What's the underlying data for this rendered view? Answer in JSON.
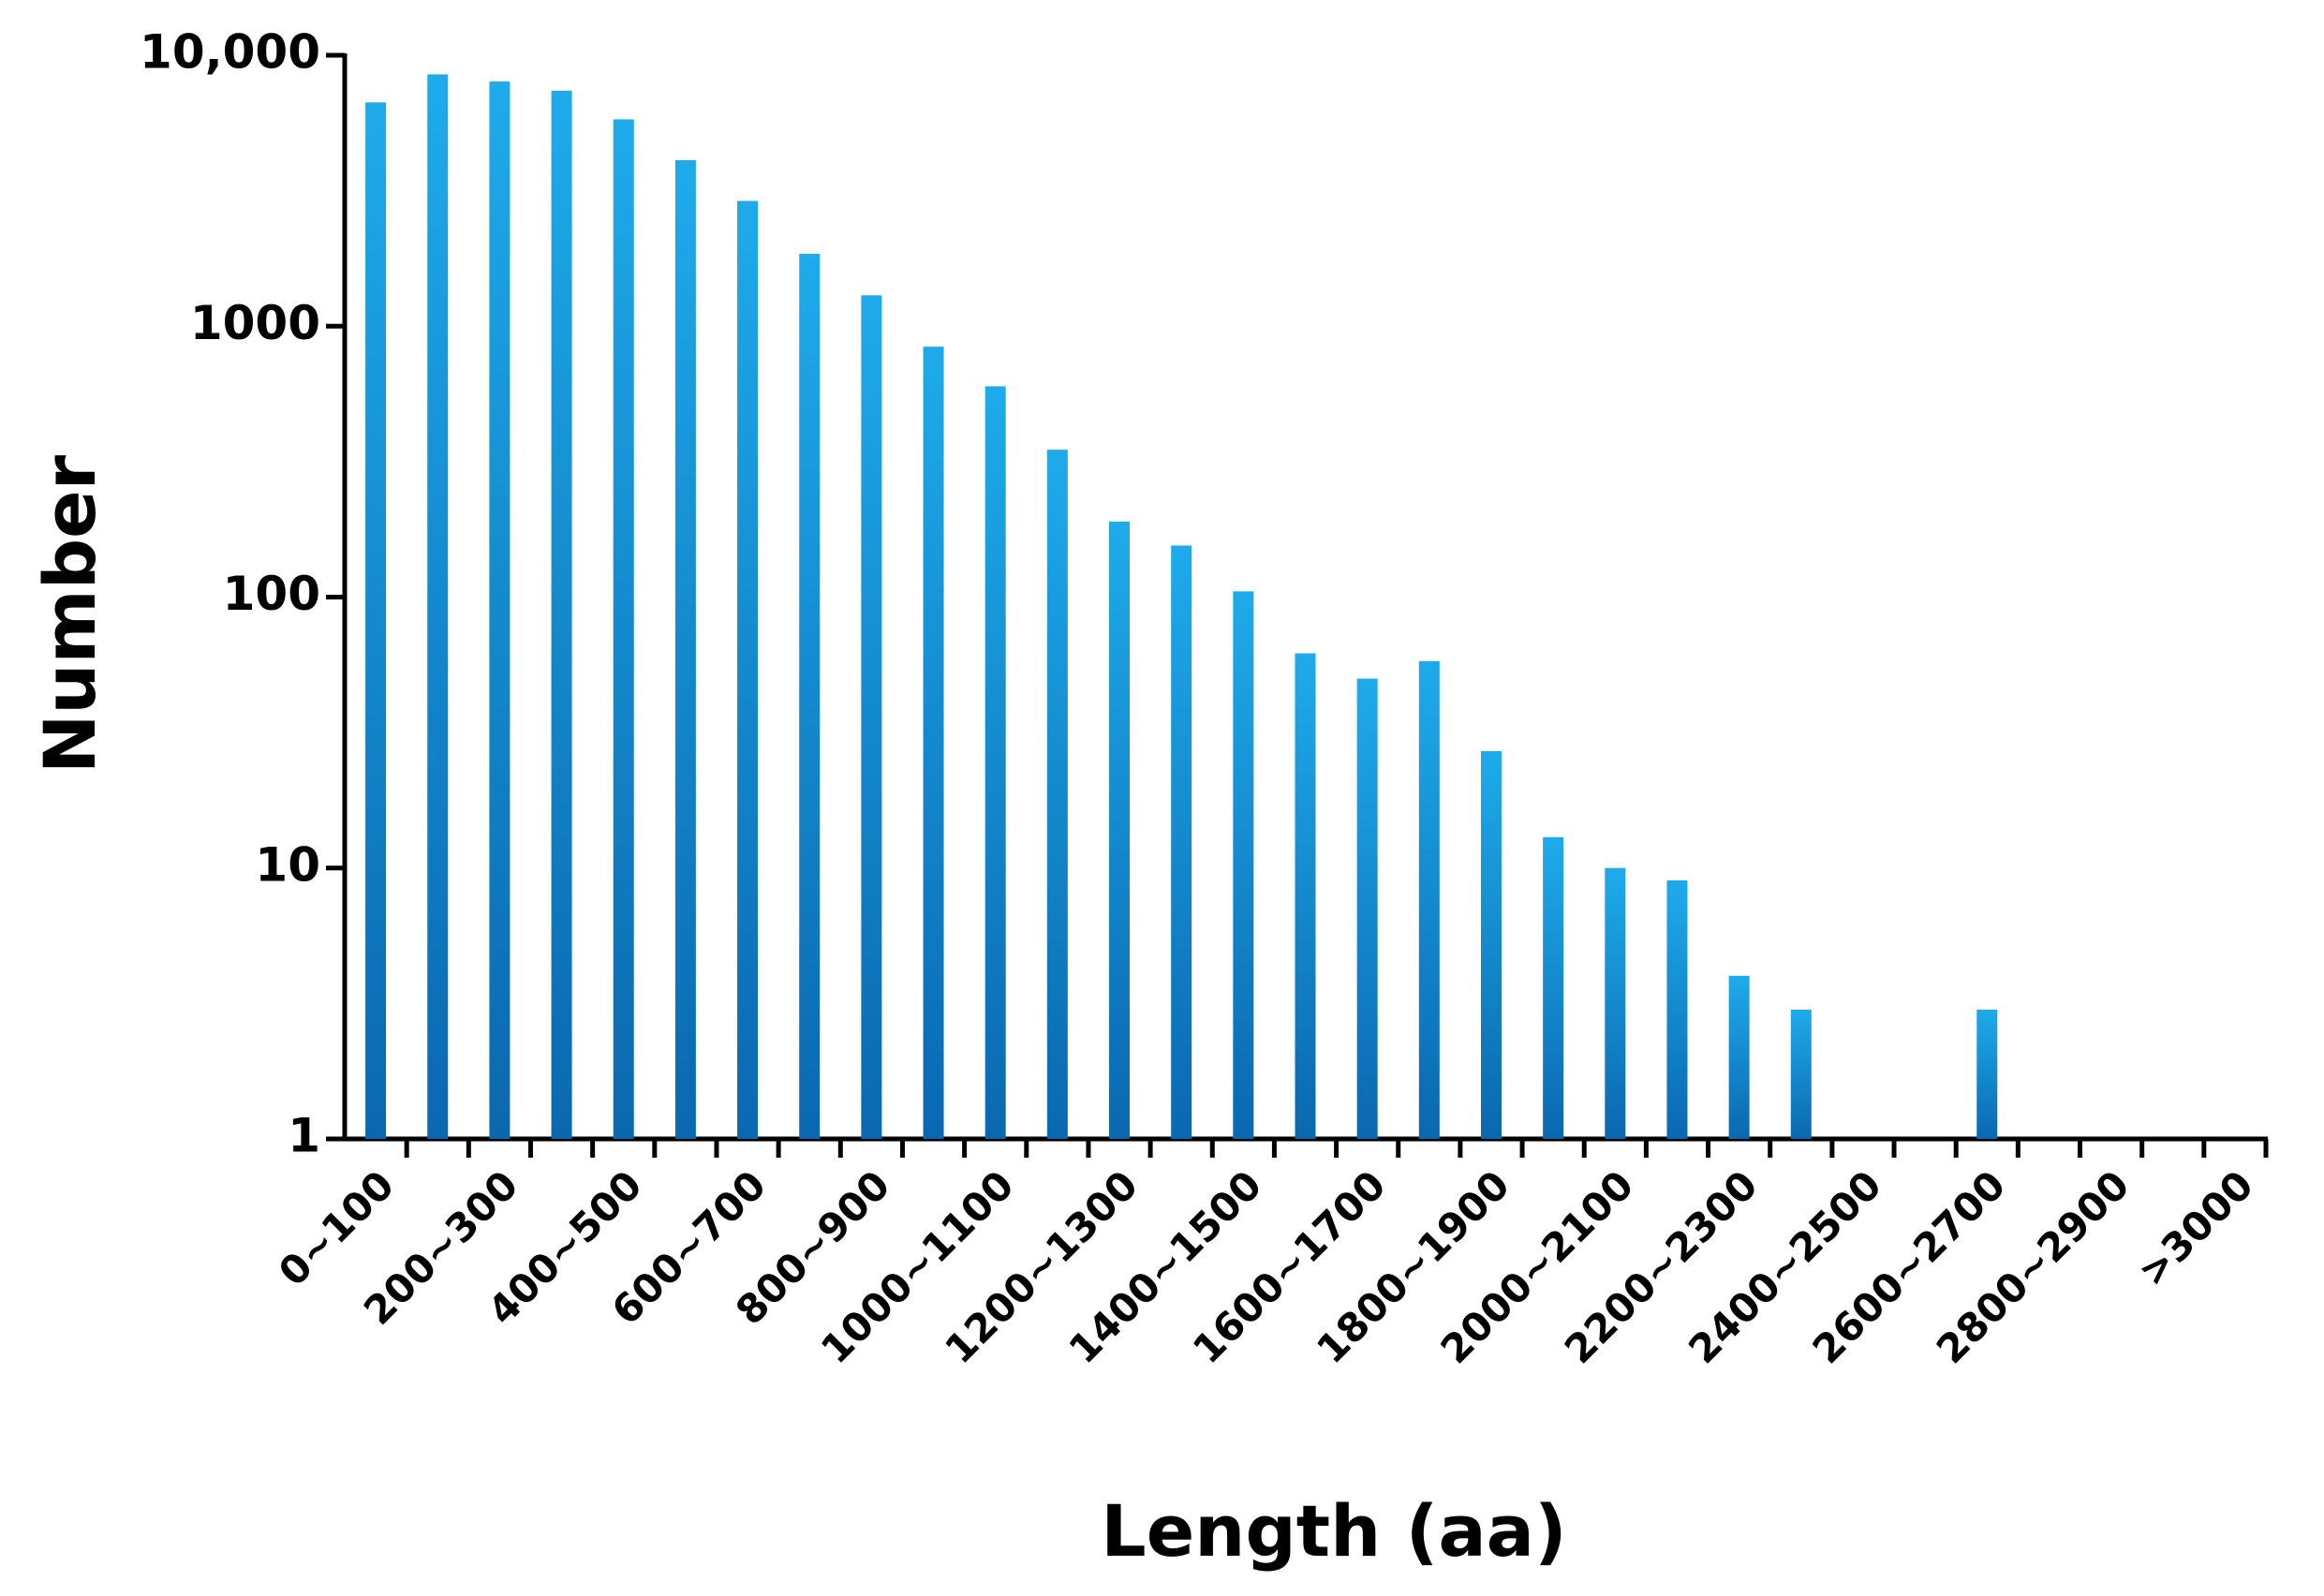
{
  "chart_data": {
    "type": "bar",
    "x_label": "Length (aa)",
    "y_label": "Number",
    "categories": [
      "0~100",
      null,
      "200~300",
      null,
      "400~500",
      null,
      "600~700",
      null,
      "800~900",
      null,
      "1000~1100",
      null,
      "1200~1300",
      null,
      "1400~1500",
      null,
      "1600~1700",
      null,
      "1800~1900",
      null,
      "2000~2100",
      null,
      "2200~2300",
      null,
      "2400~2500",
      null,
      "2600~2700",
      null,
      "2800~2900",
      null,
      ">3000"
    ],
    "values": [
      6700,
      8500,
      8000,
      7400,
      5800,
      4100,
      2900,
      1850,
      1300,
      840,
      600,
      350,
      190,
      155,
      105,
      62,
      50,
      58,
      27,
      13,
      10,
      9,
      4,
      3,
      null,
      null,
      3,
      null,
      null,
      null,
      null
    ],
    "gradient": [
      "#1eabeb",
      "#0a68b0"
    ],
    "log_scale": true,
    "ylim": [
      1,
      10000
    ],
    "yticks": [
      1,
      10,
      100,
      1000,
      {
        "value": 10000,
        "label": "10,000"
      }
    ]
  }
}
